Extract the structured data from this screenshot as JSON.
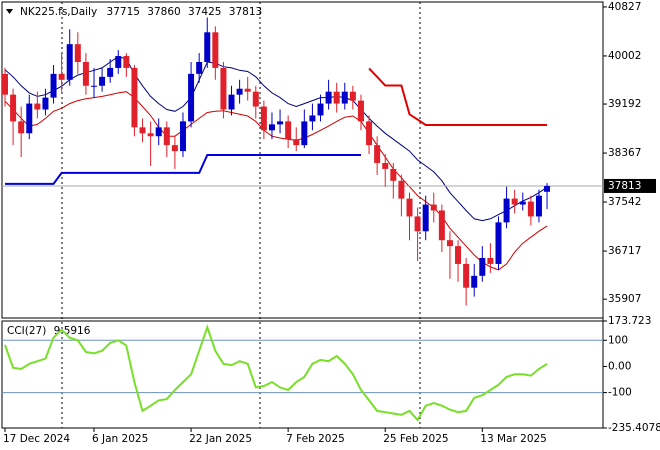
{
  "chart_data": [
    {
      "type": "candlestick",
      "title": "NK225.fs,Daily",
      "categories": [
        "17 Dec 2024",
        null,
        null,
        null,
        null,
        null,
        null,
        null,
        null,
        null,
        null,
        "6 Jan 2025",
        null,
        null,
        null,
        null,
        null,
        null,
        null,
        null,
        null,
        null,
        null,
        "22 Jan 2025",
        null,
        null,
        null,
        null,
        null,
        null,
        null,
        null,
        null,
        null,
        null,
        "7 Feb 2025",
        null,
        null,
        null,
        null,
        null,
        null,
        null,
        null,
        null,
        null,
        null,
        "25 Feb 2025",
        null,
        null,
        null,
        null,
        null,
        null,
        null,
        null,
        null,
        null,
        null,
        "13 Mar 2025",
        null,
        null,
        null,
        null,
        null,
        null,
        null,
        null
      ],
      "open": [
        39700,
        39350,
        38900,
        38700,
        39200,
        39100,
        39300,
        39700,
        39600,
        40200,
        39900,
        39500,
        39500,
        39650,
        39800,
        40000,
        39800,
        38800,
        38700,
        38650,
        38800,
        38500,
        38400,
        38900,
        39700,
        39900,
        40400,
        39800,
        39100,
        39350,
        39450,
        39400,
        39150,
        38750,
        38850,
        38900,
        38600,
        38500,
        38900,
        39000,
        39200,
        39400,
        39200,
        39400,
        39250,
        38900,
        38500,
        38200,
        38100,
        37900,
        37600,
        37300,
        37050,
        37500,
        37400,
        36900,
        36800,
        36500,
        36100,
        36300,
        36600,
        36500,
        37200,
        37600,
        37500,
        37550,
        37300,
        37715
      ],
      "high": [
        39800,
        39450,
        39150,
        39350,
        39400,
        39450,
        39850,
        40050,
        40450,
        40400,
        40050,
        39800,
        39800,
        39950,
        40100,
        40050,
        39850,
        38950,
        38900,
        38950,
        38900,
        38650,
        39050,
        39900,
        40050,
        40650,
        40500,
        39900,
        39500,
        39600,
        39650,
        39500,
        39250,
        39050,
        39100,
        39000,
        38800,
        39100,
        39200,
        39350,
        39600,
        39550,
        39550,
        39500,
        39350,
        39000,
        38650,
        38350,
        38200,
        38000,
        37700,
        37450,
        37650,
        37700,
        37500,
        37050,
        36900,
        36600,
        36500,
        36800,
        36850,
        37300,
        37800,
        37750,
        37700,
        37650,
        37750,
        37860
      ],
      "low": [
        39150,
        38500,
        38300,
        38600,
        38950,
        39000,
        39200,
        39400,
        39500,
        39700,
        39350,
        39300,
        39400,
        39550,
        39700,
        39650,
        38650,
        38550,
        38150,
        38500,
        38300,
        38100,
        38300,
        38800,
        39550,
        39800,
        39600,
        38950,
        39000,
        39200,
        39250,
        38950,
        38600,
        38600,
        38700,
        38450,
        38400,
        38450,
        38750,
        38900,
        39100,
        39050,
        39100,
        39100,
        38750,
        38350,
        38000,
        37800,
        37600,
        37300,
        36900,
        36550,
        36900,
        37200,
        36700,
        36250,
        36200,
        35800,
        35950,
        36200,
        36350,
        36400,
        37100,
        37350,
        37400,
        37150,
        37200,
        37425
      ],
      "close": [
        39350,
        38900,
        38700,
        39200,
        39100,
        39300,
        39700,
        39600,
        40200,
        39900,
        39500,
        39500,
        39650,
        39800,
        40000,
        39800,
        38800,
        38700,
        38650,
        38800,
        38500,
        38400,
        38900,
        39700,
        39900,
        40400,
        39800,
        39100,
        39350,
        39450,
        39400,
        39150,
        38750,
        38850,
        38900,
        38600,
        38500,
        38900,
        39000,
        39200,
        39400,
        39200,
        39400,
        39250,
        38900,
        38500,
        38200,
        38100,
        37900,
        37600,
        37300,
        37050,
        37500,
        37400,
        36900,
        36800,
        36500,
        36100,
        36300,
        36600,
        36500,
        37200,
        37600,
        37500,
        37550,
        37300,
        37650,
        37813
      ],
      "up_color": "#0000c8",
      "down_color": "#e0202a",
      "lines": [
        {
          "color": "#000080",
          "width": 1,
          "values": [
            39770,
            39650,
            39500,
            39380,
            39320,
            39350,
            39420,
            39490,
            39600,
            39680,
            39720,
            39760,
            39800,
            39900,
            39990,
            39950,
            39700,
            39500,
            39320,
            39200,
            39100,
            39070,
            39150,
            39300,
            39600,
            39900,
            39880,
            39820,
            39800,
            39760,
            39740,
            39650,
            39500,
            39380,
            39300,
            39200,
            39150,
            39200,
            39250,
            39300,
            39300,
            39320,
            39300,
            39250,
            39100,
            38950,
            38820,
            38700,
            38600,
            38500,
            38400,
            38250,
            38150,
            38050,
            37900,
            37700,
            37550,
            37400,
            37260,
            37230,
            37260,
            37330,
            37400,
            37480,
            37560,
            37620,
            37700,
            37790
          ]
        },
        {
          "color": "#d00000",
          "width": 1,
          "values": [
            39240,
            39100,
            38950,
            38820,
            38850,
            38950,
            39070,
            39120,
            39200,
            39250,
            39280,
            39300,
            39320,
            39350,
            39380,
            39400,
            39300,
            39150,
            39000,
            38800,
            38650,
            38650,
            38750,
            38850,
            38950,
            39050,
            39070,
            39080,
            39050,
            39020,
            38990,
            38900,
            38750,
            38650,
            38620,
            38600,
            38580,
            38620,
            38680,
            38750,
            38820,
            38900,
            38970,
            38990,
            38900,
            38700,
            38500,
            38300,
            38100,
            37950,
            37800,
            37650,
            37550,
            37450,
            37300,
            37100,
            36950,
            36800,
            36650,
            36530,
            36450,
            36400,
            36500,
            36700,
            36850,
            36950,
            37050,
            37140
          ]
        },
        {
          "color": "#0000e0",
          "width": 2,
          "values": [
            37848,
            37848,
            37848,
            37848,
            37848,
            37848,
            37848,
            38032,
            38032,
            38032,
            38032,
            38032,
            38032,
            38032,
            38032,
            38032,
            38032,
            38032,
            38032,
            38032,
            38032,
            38032,
            38032,
            38032,
            38032,
            38334,
            38334,
            38334,
            38334,
            38334,
            38334,
            38334,
            38334,
            38334,
            38334,
            38334,
            38334,
            38334,
            38334,
            38334,
            38334,
            38334,
            38334,
            38334,
            38334,
            null,
            null,
            null,
            null,
            null,
            null,
            null,
            null,
            null,
            null,
            null,
            null,
            null,
            null,
            null,
            null,
            null,
            null,
            null,
            null,
            null,
            null,
            null
          ]
        },
        {
          "color": "#e00000",
          "width": 2,
          "values": [
            null,
            null,
            null,
            null,
            null,
            null,
            null,
            null,
            null,
            null,
            null,
            null,
            null,
            null,
            null,
            null,
            null,
            null,
            null,
            null,
            null,
            null,
            null,
            null,
            null,
            null,
            null,
            null,
            null,
            null,
            null,
            null,
            null,
            null,
            null,
            null,
            null,
            null,
            null,
            null,
            null,
            null,
            null,
            null,
            null,
            39790,
            39650,
            39505,
            39505,
            39505,
            39020,
            38930,
            38840,
            38840,
            38840,
            38840,
            38840,
            38840,
            38840,
            38840,
            38840,
            38840,
            38840,
            38840,
            38840,
            38840,
            38840,
            38840
          ]
        }
      ],
      "ylim": [
        35590,
        40910
      ],
      "yticks": [
        35907,
        36717,
        37542,
        38367,
        39192,
        40002,
        40827
      ]
    },
    {
      "type": "line",
      "title": "CCI(27)",
      "color": "#78e028",
      "values": [
        82,
        -5,
        -10,
        10,
        20,
        30,
        110,
        140,
        110,
        100,
        55,
        50,
        60,
        90,
        100,
        80,
        -60,
        -170,
        -150,
        -130,
        -125,
        -90,
        -60,
        -30,
        60,
        150,
        60,
        10,
        5,
        20,
        10,
        -80,
        -75,
        -60,
        -80,
        -90,
        -60,
        -40,
        10,
        25,
        20,
        40,
        10,
        -30,
        -90,
        -130,
        -170,
        -175,
        -180,
        -185,
        -170,
        -205,
        -150,
        -140,
        -150,
        -165,
        -175,
        -170,
        -120,
        -110,
        -90,
        -70,
        -40,
        -30,
        -30,
        -35,
        -10,
        9.5916
      ],
      "levels": [
        100,
        -100
      ],
      "level_color": "#6e93b8",
      "ylim": [
        -235.4078,
        173.723
      ],
      "yticks": [
        173.723,
        100,
        {
          "value": 0,
          "label": "0.00"
        },
        -100,
        -235.4078
      ]
    }
  ]
}
